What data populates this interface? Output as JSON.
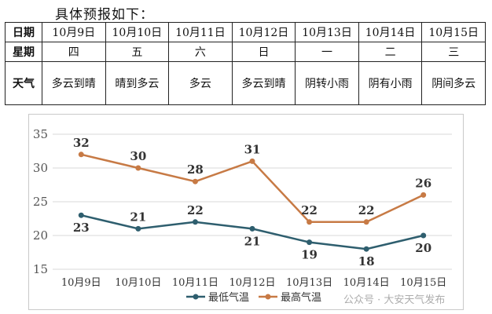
{
  "intro": "具体预报如下：",
  "table": {
    "row_headers": [
      "日期",
      "星期",
      "天气"
    ],
    "dates": [
      "10月9日",
      "10月10日",
      "10月11日",
      "10月12日",
      "10月13日",
      "10月14日",
      "10月15日"
    ],
    "weekdays": [
      "四",
      "五",
      "六",
      "日",
      "一",
      "二",
      "三"
    ],
    "weather": [
      "多云到晴",
      "晴到多云",
      "多云",
      "多云到晴",
      "阴转小雨",
      "阴有小雨",
      "阴间多云"
    ]
  },
  "watermark": "公众号 · 大安天气发布",
  "chart_data": {
    "type": "line",
    "categories": [
      "10月9日",
      "10月10日",
      "10月11日",
      "10月12日",
      "10月13日",
      "10月14日",
      "10月15日"
    ],
    "series": [
      {
        "name": "最低气温",
        "values": [
          23,
          21,
          22,
          21,
          19,
          18,
          20
        ],
        "color": "#2e5e6e"
      },
      {
        "name": "最高气温",
        "values": [
          32,
          30,
          28,
          31,
          22,
          22,
          26
        ],
        "color": "#c77a45"
      }
    ],
    "ylim": [
      15,
      35
    ],
    "yticks": [
      15,
      20,
      25,
      30,
      35
    ],
    "grid": true,
    "legend": "bottom",
    "xlabel": "",
    "ylabel": ""
  }
}
